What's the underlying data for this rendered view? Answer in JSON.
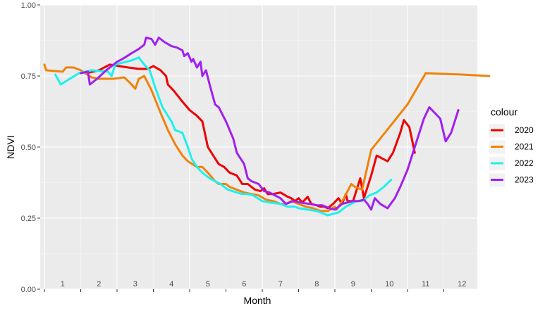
{
  "chart_data": {
    "type": "line",
    "xlabel": "Month",
    "ylabel": "NDVI",
    "ylim": [
      0,
      1
    ],
    "xlim": [
      0,
      12.3
    ],
    "y_ticks": [
      "0.00",
      "0.25",
      "0.50",
      "0.75",
      "1.00"
    ],
    "y_tick_values": [
      0,
      0.25,
      0.5,
      0.75,
      1.0
    ],
    "month_labels": [
      "1",
      "2",
      "3",
      "4",
      "5",
      "6",
      "7",
      "8",
      "9",
      "10",
      "11",
      "12"
    ],
    "grid": true,
    "legend_title": "colour",
    "legend_position": "right",
    "series": [
      {
        "name": "2020",
        "color": "#ee0000",
        "points": [
          [
            1.15,
            0.76
          ],
          [
            1.5,
            0.77
          ],
          [
            1.8,
            0.79
          ],
          [
            2.3,
            0.78
          ],
          [
            2.6,
            0.775
          ],
          [
            2.85,
            0.775
          ],
          [
            3.0,
            0.785
          ],
          [
            3.2,
            0.77
          ],
          [
            3.35,
            0.75
          ],
          [
            3.4,
            0.72
          ],
          [
            3.55,
            0.7
          ],
          [
            3.8,
            0.66
          ],
          [
            4.0,
            0.63
          ],
          [
            4.2,
            0.61
          ],
          [
            4.35,
            0.59
          ],
          [
            4.5,
            0.5
          ],
          [
            4.7,
            0.46
          ],
          [
            4.8,
            0.44
          ],
          [
            4.95,
            0.43
          ],
          [
            5.1,
            0.41
          ],
          [
            5.3,
            0.4
          ],
          [
            5.45,
            0.37
          ],
          [
            5.6,
            0.37
          ],
          [
            5.8,
            0.35
          ],
          [
            5.95,
            0.345
          ],
          [
            6.05,
            0.355
          ],
          [
            6.15,
            0.335
          ],
          [
            6.3,
            0.335
          ],
          [
            6.5,
            0.34
          ],
          [
            6.7,
            0.325
          ],
          [
            6.8,
            0.32
          ],
          [
            6.9,
            0.31
          ],
          [
            7.0,
            0.32
          ],
          [
            7.1,
            0.305
          ],
          [
            7.25,
            0.325
          ],
          [
            7.35,
            0.3
          ],
          [
            7.5,
            0.295
          ],
          [
            7.6,
            0.29
          ],
          [
            7.7,
            0.29
          ],
          [
            7.8,
            0.285
          ],
          [
            7.95,
            0.3
          ],
          [
            8.1,
            0.32
          ],
          [
            8.2,
            0.3
          ],
          [
            8.3,
            0.335
          ],
          [
            8.35,
            0.31
          ],
          [
            8.5,
            0.31
          ],
          [
            8.7,
            0.39
          ],
          [
            8.8,
            0.32
          ],
          [
            9.0,
            0.4
          ],
          [
            9.15,
            0.47
          ],
          [
            9.3,
            0.46
          ],
          [
            9.45,
            0.45
          ],
          [
            9.6,
            0.48
          ],
          [
            9.8,
            0.55
          ],
          [
            9.9,
            0.595
          ],
          [
            10.05,
            0.57
          ],
          [
            10.2,
            0.48
          ]
        ]
      },
      {
        "name": "2021",
        "color": "#f0820a",
        "points": [
          [
            0.0,
            0.79
          ],
          [
            0.05,
            0.77
          ],
          [
            0.5,
            0.765
          ],
          [
            0.6,
            0.78
          ],
          [
            0.8,
            0.78
          ],
          [
            1.0,
            0.77
          ],
          [
            1.3,
            0.745
          ],
          [
            1.5,
            0.74
          ],
          [
            1.9,
            0.74
          ],
          [
            2.2,
            0.745
          ],
          [
            2.4,
            0.72
          ],
          [
            2.5,
            0.705
          ],
          [
            2.6,
            0.74
          ],
          [
            2.75,
            0.75
          ],
          [
            2.95,
            0.7
          ],
          [
            3.2,
            0.62
          ],
          [
            3.4,
            0.56
          ],
          [
            3.6,
            0.51
          ],
          [
            3.8,
            0.47
          ],
          [
            3.95,
            0.45
          ],
          [
            4.2,
            0.43
          ],
          [
            4.35,
            0.43
          ],
          [
            4.5,
            0.41
          ],
          [
            4.7,
            0.38
          ],
          [
            4.8,
            0.37
          ],
          [
            5.0,
            0.37
          ],
          [
            5.1,
            0.36
          ],
          [
            5.3,
            0.35
          ],
          [
            5.5,
            0.34
          ],
          [
            5.7,
            0.335
          ],
          [
            5.9,
            0.33
          ],
          [
            6.1,
            0.315
          ],
          [
            6.3,
            0.31
          ],
          [
            6.5,
            0.3
          ],
          [
            6.65,
            0.3
          ],
          [
            6.8,
            0.31
          ],
          [
            7.0,
            0.3
          ],
          [
            7.2,
            0.29
          ],
          [
            7.4,
            0.285
          ],
          [
            7.6,
            0.275
          ],
          [
            7.8,
            0.275
          ],
          [
            8.0,
            0.29
          ],
          [
            8.05,
            0.28
          ],
          [
            8.1,
            0.29
          ],
          [
            8.25,
            0.32
          ],
          [
            8.45,
            0.37
          ],
          [
            8.55,
            0.36
          ],
          [
            8.75,
            0.35
          ],
          [
            9.0,
            0.49
          ],
          [
            9.5,
            0.57
          ],
          [
            10.0,
            0.65
          ],
          [
            10.5,
            0.76
          ],
          [
            11.5,
            0.755
          ],
          [
            12.25,
            0.75
          ]
        ]
      },
      {
        "name": "2022",
        "color": "#1ff0f0",
        "points": [
          [
            0.3,
            0.755
          ],
          [
            0.45,
            0.72
          ],
          [
            0.7,
            0.74
          ],
          [
            0.95,
            0.76
          ],
          [
            1.3,
            0.77
          ],
          [
            1.75,
            0.765
          ],
          [
            1.85,
            0.75
          ],
          [
            1.95,
            0.79
          ],
          [
            2.4,
            0.805
          ],
          [
            2.6,
            0.815
          ],
          [
            2.75,
            0.79
          ],
          [
            2.9,
            0.77
          ],
          [
            3.05,
            0.71
          ],
          [
            3.25,
            0.64
          ],
          [
            3.5,
            0.59
          ],
          [
            3.6,
            0.56
          ],
          [
            3.8,
            0.55
          ],
          [
            3.95,
            0.5
          ],
          [
            4.05,
            0.46
          ],
          [
            4.2,
            0.43
          ],
          [
            4.35,
            0.41
          ],
          [
            4.55,
            0.39
          ],
          [
            4.85,
            0.37
          ],
          [
            5.05,
            0.35
          ],
          [
            5.3,
            0.34
          ],
          [
            5.45,
            0.335
          ],
          [
            5.6,
            0.335
          ],
          [
            5.75,
            0.33
          ],
          [
            6.0,
            0.31
          ],
          [
            6.2,
            0.305
          ],
          [
            6.5,
            0.3
          ],
          [
            6.7,
            0.29
          ],
          [
            6.9,
            0.29
          ],
          [
            7.0,
            0.285
          ],
          [
            7.25,
            0.28
          ],
          [
            7.5,
            0.275
          ],
          [
            7.6,
            0.27
          ],
          [
            7.8,
            0.26
          ],
          [
            8.1,
            0.27
          ],
          [
            8.3,
            0.29
          ],
          [
            8.6,
            0.31
          ],
          [
            8.75,
            0.31
          ],
          [
            8.95,
            0.33
          ],
          [
            9.15,
            0.34
          ],
          [
            9.35,
            0.36
          ],
          [
            9.55,
            0.385
          ]
        ]
      },
      {
        "name": "2023",
        "color": "#a020f0",
        "points": [
          [
            1.0,
            0.76
          ],
          [
            1.2,
            0.765
          ],
          [
            1.25,
            0.72
          ],
          [
            1.45,
            0.74
          ],
          [
            1.7,
            0.77
          ],
          [
            1.85,
            0.785
          ],
          [
            2.0,
            0.8
          ],
          [
            2.15,
            0.81
          ],
          [
            2.4,
            0.83
          ],
          [
            2.6,
            0.845
          ],
          [
            2.75,
            0.86
          ],
          [
            2.8,
            0.885
          ],
          [
            2.95,
            0.88
          ],
          [
            3.05,
            0.86
          ],
          [
            3.15,
            0.885
          ],
          [
            3.3,
            0.87
          ],
          [
            3.5,
            0.855
          ],
          [
            3.65,
            0.85
          ],
          [
            3.8,
            0.84
          ],
          [
            3.85,
            0.82
          ],
          [
            3.95,
            0.83
          ],
          [
            4.05,
            0.8
          ],
          [
            4.1,
            0.81
          ],
          [
            4.2,
            0.78
          ],
          [
            4.3,
            0.8
          ],
          [
            4.35,
            0.75
          ],
          [
            4.45,
            0.77
          ],
          [
            4.55,
            0.72
          ],
          [
            4.7,
            0.65
          ],
          [
            4.8,
            0.64
          ],
          [
            5.0,
            0.59
          ],
          [
            5.2,
            0.53
          ],
          [
            5.3,
            0.48
          ],
          [
            5.4,
            0.46
          ],
          [
            5.5,
            0.44
          ],
          [
            5.6,
            0.39
          ],
          [
            5.7,
            0.38
          ],
          [
            5.9,
            0.37
          ],
          [
            6.05,
            0.345
          ],
          [
            6.2,
            0.34
          ],
          [
            6.35,
            0.33
          ],
          [
            6.5,
            0.32
          ],
          [
            6.65,
            0.3
          ],
          [
            6.85,
            0.31
          ],
          [
            7.05,
            0.305
          ],
          [
            7.3,
            0.3
          ],
          [
            7.5,
            0.295
          ],
          [
            7.65,
            0.295
          ],
          [
            7.85,
            0.285
          ],
          [
            8.0,
            0.28
          ],
          [
            8.2,
            0.3
          ],
          [
            8.35,
            0.305
          ],
          [
            8.5,
            0.31
          ],
          [
            8.65,
            0.31
          ],
          [
            8.8,
            0.315
          ],
          [
            8.9,
            0.3
          ],
          [
            9.0,
            0.28
          ],
          [
            9.1,
            0.32
          ],
          [
            9.25,
            0.3
          ],
          [
            9.45,
            0.285
          ],
          [
            9.65,
            0.32
          ],
          [
            9.8,
            0.36
          ],
          [
            10.0,
            0.42
          ],
          [
            10.2,
            0.5
          ],
          [
            10.45,
            0.6
          ],
          [
            10.6,
            0.64
          ],
          [
            10.75,
            0.62
          ],
          [
            10.9,
            0.6
          ],
          [
            11.05,
            0.52
          ],
          [
            11.2,
            0.55
          ],
          [
            11.4,
            0.63
          ]
        ]
      }
    ]
  }
}
